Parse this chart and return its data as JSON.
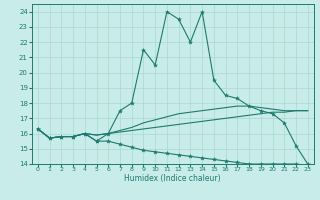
{
  "xlabel": "Humidex (Indice chaleur)",
  "xlim": [
    -0.5,
    23.5
  ],
  "ylim": [
    14,
    24.5
  ],
  "yticks": [
    14,
    15,
    16,
    17,
    18,
    19,
    20,
    21,
    22,
    23,
    24
  ],
  "xticks": [
    0,
    1,
    2,
    3,
    4,
    5,
    6,
    7,
    8,
    9,
    10,
    11,
    12,
    13,
    14,
    15,
    16,
    17,
    18,
    19,
    20,
    21,
    22,
    23
  ],
  "background_color": "#c8ece9",
  "grid_color": "#aad8d2",
  "line_color": "#1e7a6e",
  "line1": [
    16.3,
    15.7,
    15.8,
    15.8,
    16.0,
    15.5,
    16.0,
    17.5,
    18.0,
    21.5,
    20.5,
    24.0,
    23.5,
    22.0,
    24.0,
    19.5,
    18.5,
    18.3,
    17.8,
    17.5,
    17.3,
    16.7,
    15.2,
    14.0
  ],
  "line2": [
    16.3,
    15.7,
    15.8,
    15.8,
    16.0,
    15.5,
    15.5,
    15.3,
    15.1,
    14.9,
    14.8,
    14.7,
    14.6,
    14.5,
    14.4,
    14.3,
    14.2,
    14.1,
    14.0,
    14.0,
    14.0,
    14.0,
    14.0,
    13.9
  ],
  "line3": [
    16.3,
    15.7,
    15.8,
    15.8,
    16.0,
    15.9,
    16.0,
    16.1,
    16.2,
    16.3,
    16.4,
    16.5,
    16.6,
    16.7,
    16.8,
    16.9,
    17.0,
    17.1,
    17.2,
    17.3,
    17.4,
    17.4,
    17.5,
    17.5
  ],
  "line4": [
    16.3,
    15.7,
    15.8,
    15.8,
    16.0,
    15.9,
    16.0,
    16.2,
    16.4,
    16.7,
    16.9,
    17.1,
    17.3,
    17.4,
    17.5,
    17.6,
    17.7,
    17.8,
    17.8,
    17.7,
    17.6,
    17.5,
    17.5,
    17.5
  ]
}
